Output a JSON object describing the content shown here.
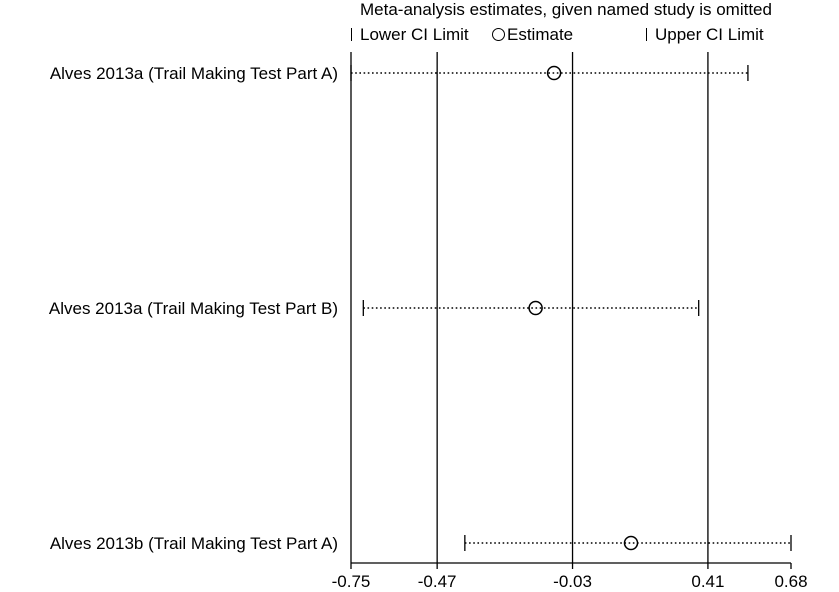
{
  "chart_data": {
    "type": "forest",
    "title": "Meta-analysis estimates, given named study is omitted",
    "legend": {
      "lower_label": "Lower CI Limit",
      "estimate_label": "Estimate",
      "upper_label": "Upper CI Limit"
    },
    "xlim": [
      -0.75,
      0.68
    ],
    "x_ticks": [
      -0.75,
      -0.47,
      -0.03,
      0.41,
      0.68
    ],
    "x_tick_labels": [
      "-0.75",
      "-0.47",
      "-0.03",
      "0.41",
      "0.68"
    ],
    "reference_lines": [
      -0.75,
      -0.47,
      -0.03,
      0.41
    ],
    "studies": [
      {
        "label": "Alves 2013a (Trail Making Test Part A)",
        "lower": -0.75,
        "estimate": -0.09,
        "upper": 0.54
      },
      {
        "label": "Alves 2013a (Trail Making Test Part B)",
        "lower": -0.71,
        "estimate": -0.15,
        "upper": 0.38
      },
      {
        "label": "Alves 2013b (Trail Making Test Part A)",
        "lower": -0.38,
        "estimate": 0.16,
        "upper": 0.68
      }
    ]
  }
}
